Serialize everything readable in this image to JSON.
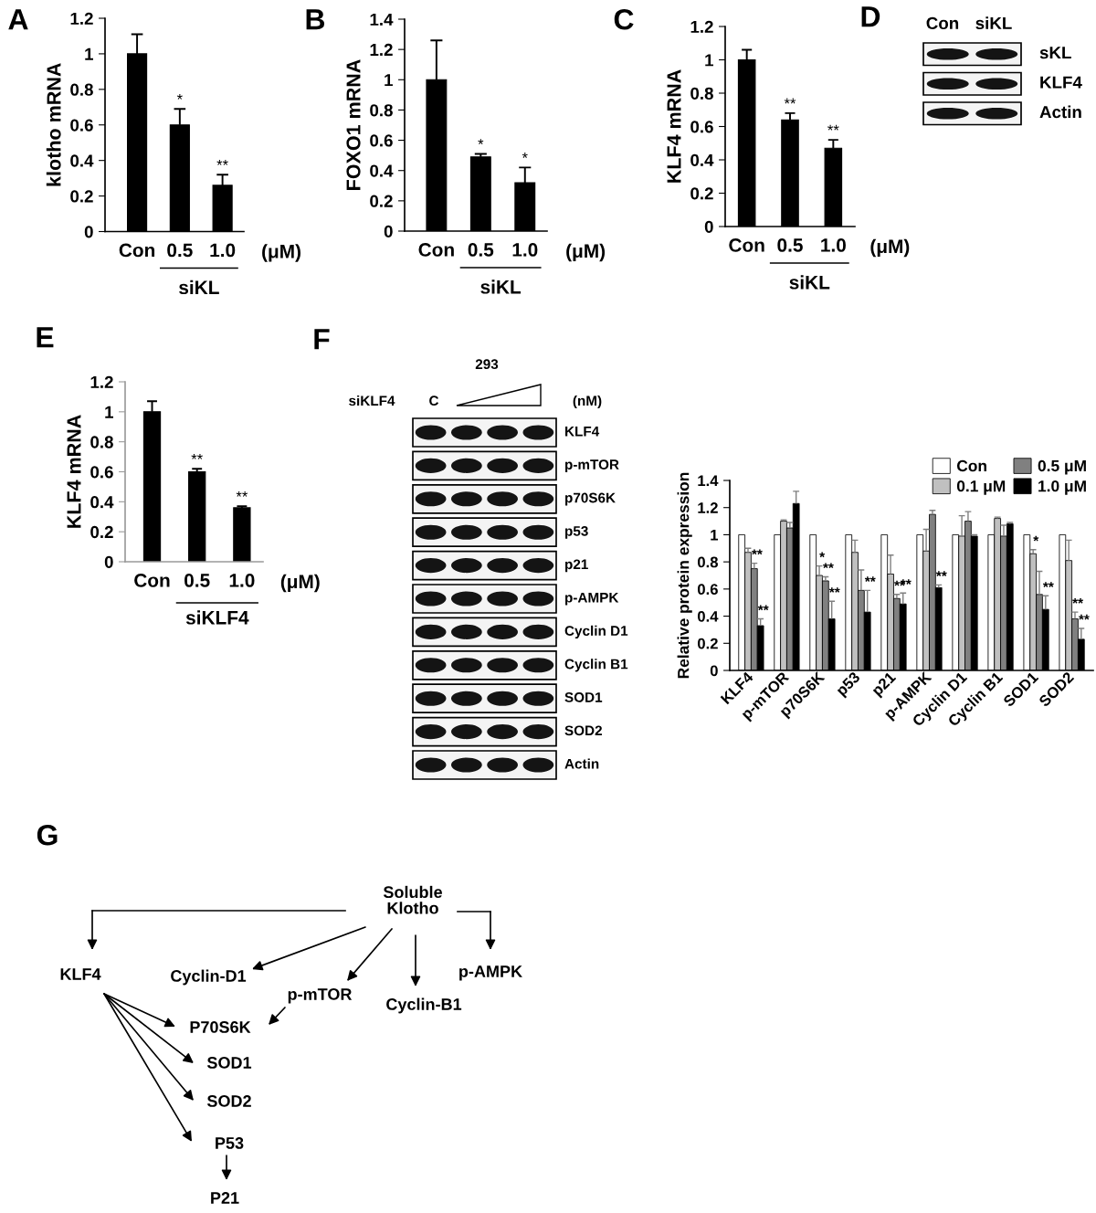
{
  "chart_data": [
    {
      "type": "bar",
      "title": "A",
      "ylabel": "klotho mRNA",
      "xlabel": "(μM)",
      "categories": [
        "Con",
        "0.5",
        "1.0"
      ],
      "values": [
        1.0,
        0.6,
        0.26
      ],
      "errors": [
        [
          1.0,
          1.11
        ],
        [
          0.6,
          0.69
        ],
        [
          0.26,
          0.32
        ]
      ],
      "value_labels": [
        null,
        "*",
        "**"
      ],
      "color": "#000000",
      "ylim": [
        0,
        1.2
      ],
      "yticks": [
        0,
        0.2,
        0.4,
        0.6,
        0.8,
        1,
        1.2
      ],
      "annotations": [
        "siKL"
      ]
    },
    {
      "type": "bar",
      "title": "B",
      "ylabel": "FOXO1 mRNA",
      "xlabel": "(μM)",
      "categories": [
        "Con",
        "0.5",
        "1.0"
      ],
      "values": [
        1.0,
        0.49,
        0.32
      ],
      "errors": [
        [
          1.0,
          1.26
        ],
        [
          0.49,
          0.51
        ],
        [
          0.32,
          0.42
        ]
      ],
      "value_labels": [
        null,
        "*",
        "*"
      ],
      "color": "#000000",
      "ylim": [
        0,
        1.4
      ],
      "yticks": [
        0,
        0.2,
        0.4,
        0.6,
        0.8,
        1,
        1.2,
        1.4
      ],
      "annotations": [
        "siKL"
      ]
    },
    {
      "type": "bar",
      "title": "C",
      "ylabel": "KLF4 mRNA",
      "xlabel": "(μM)",
      "categories": [
        "Con",
        "0.5",
        "1.0"
      ],
      "values": [
        1.0,
        0.64,
        0.47
      ],
      "errors": [
        [
          1.0,
          1.06
        ],
        [
          0.64,
          0.68
        ],
        [
          0.47,
          0.52
        ]
      ],
      "value_labels": [
        null,
        "**",
        "**"
      ],
      "color": "#000000",
      "ylim": [
        0,
        1.2
      ],
      "yticks": [
        0,
        0.2,
        0.4,
        0.6,
        0.8,
        1,
        1.2
      ],
      "annotations": [
        "siKL"
      ]
    },
    {
      "type": "other",
      "title": "D",
      "categories": [
        "sKL",
        "KLF4",
        "Actin"
      ],
      "annotations": [
        "Con",
        "siKL"
      ]
    },
    {
      "type": "bar",
      "title": "E",
      "ylabel": "KLF4 mRNA",
      "xlabel": "(μM)",
      "categories": [
        "Con",
        "0.5",
        "1.0"
      ],
      "values": [
        1.0,
        0.6,
        0.36
      ],
      "errors": [
        [
          1.0,
          1.07
        ],
        [
          0.6,
          0.62
        ],
        [
          0.36,
          0.37
        ]
      ],
      "value_labels": [
        null,
        "**",
        "**"
      ],
      "color": "#000000",
      "ylim": [
        0,
        1.2
      ],
      "yticks": [
        0,
        0.2,
        0.4,
        0.6,
        0.8,
        1,
        1.2
      ],
      "annotations": [
        "siKLF4"
      ]
    },
    {
      "type": "other",
      "title": "F",
      "categories": [
        "KLF4",
        "p-mTOR",
        "p70S6K",
        "p53",
        "p21",
        "p-AMPK",
        "Cyclin D1",
        "Cyclin B1",
        "SOD1",
        "SOD2",
        "Actin"
      ],
      "annotations": [
        "293",
        "siKLF4",
        "C",
        "(nM)"
      ]
    },
    {
      "type": "bar",
      "ylabel": "Relative protein expression",
      "categories": [
        "KLF4",
        "p-mTOR",
        "p70S6K",
        "p53",
        "p21",
        "p-AMPK",
        "Cyclin D1",
        "Cyclin B1",
        "SOD1",
        "SOD2"
      ],
      "series": [
        {
          "name": "Con",
          "color": "#ffffff",
          "values": [
            1,
            1,
            1,
            1,
            1,
            1,
            1,
            1,
            1,
            1
          ]
        },
        {
          "name": "0.1 μM",
          "color": "#c0c0c0",
          "values": [
            0.87,
            1.1,
            0.7,
            0.87,
            0.71,
            0.88,
            0.99,
            1.12,
            0.86,
            0.81
          ],
          "errors": [
            [
              0.87,
              0.9
            ],
            [
              1.1,
              1.11
            ],
            [
              0.7,
              0.77
            ],
            [
              0.87,
              0.96
            ],
            [
              0.71,
              0.85
            ],
            [
              0.88,
              1.04
            ],
            [
              0.99,
              1.14
            ],
            [
              1.12,
              1.13
            ],
            [
              0.86,
              0.89
            ],
            [
              0.81,
              0.96
            ]
          ],
          "value_labels": [
            null,
            null,
            "*",
            null,
            null,
            null,
            null,
            null,
            "*",
            null
          ]
        },
        {
          "name": "0.5 μM",
          "color": "#808080",
          "values": [
            0.75,
            1.05,
            0.66,
            0.59,
            0.53,
            1.15,
            1.1,
            0.99,
            0.56,
            0.38
          ],
          "errors": [
            [
              0.75,
              0.79
            ],
            [
              1.05,
              1.09
            ],
            [
              0.66,
              0.69
            ],
            [
              0.59,
              0.74
            ],
            [
              0.53,
              0.56
            ],
            [
              1.15,
              1.18
            ],
            [
              1.1,
              1.17
            ],
            [
              0.99,
              1.07
            ],
            [
              0.56,
              0.73
            ],
            [
              0.38,
              0.43
            ]
          ],
          "value_labels": [
            "**",
            null,
            "**",
            null,
            "**",
            null,
            null,
            null,
            null,
            "**"
          ]
        },
        {
          "name": "1.0 μM",
          "color": "#000000",
          "values": [
            0.33,
            1.23,
            0.38,
            0.43,
            0.49,
            0.61,
            0.99,
            1.08,
            0.45,
            0.23
          ],
          "errors": [
            [
              0.33,
              0.38
            ],
            [
              1.23,
              1.32
            ],
            [
              0.38,
              0.51
            ],
            [
              0.43,
              0.59
            ],
            [
              0.49,
              0.57
            ],
            [
              0.61,
              0.63
            ],
            [
              0.99,
              1.0
            ],
            [
              1.08,
              1.09
            ],
            [
              0.45,
              0.55
            ],
            [
              0.23,
              0.31
            ]
          ],
          "value_labels": [
            "**",
            null,
            "**",
            "**",
            "**",
            "**",
            null,
            null,
            "**",
            "**"
          ]
        }
      ],
      "ylim": [
        0,
        1.4
      ],
      "yticks": [
        0,
        0.2,
        0.4,
        0.6,
        0.8,
        1,
        1.2,
        1.4
      ],
      "legend": "top right"
    },
    {
      "type": "other",
      "title": "G",
      "annotations": [
        "Soluble\nKlotho",
        "KLF4",
        "Cyclin-D1",
        "p-mTOR",
        "Cyclin-B1",
        "p-AMPK",
        "P70S6K",
        "SOD1",
        "SOD2",
        "P53",
        "P21"
      ]
    }
  ]
}
